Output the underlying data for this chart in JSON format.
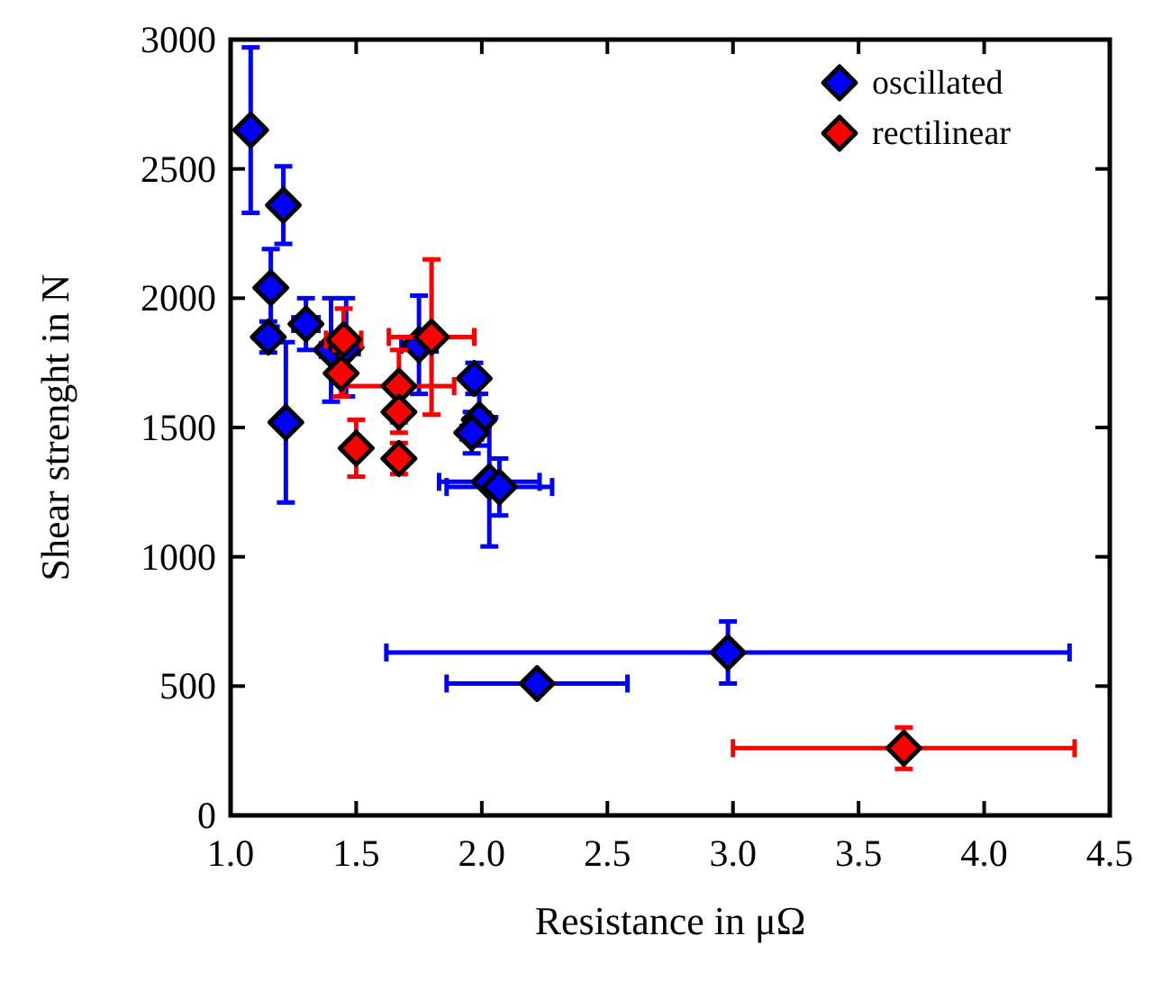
{
  "chart_data": {
    "type": "scatter",
    "xlabel": "Resistance in μΩ",
    "ylabel": "Shear strenght in N",
    "xlim": [
      1.0,
      4.5
    ],
    "xticks": [
      {
        "value": 1,
        "label": "1.0"
      },
      {
        "value": 1.5,
        "label": "1.5"
      },
      {
        "value": 2,
        "label": "2.0"
      },
      {
        "value": 2.5,
        "label": "2.5"
      },
      {
        "value": 3,
        "label": "3.0"
      },
      {
        "value": 3.5,
        "label": "3.5"
      },
      {
        "value": 4,
        "label": "4.0"
      },
      {
        "value": 4.5,
        "label": "4.5"
      }
    ],
    "ylim": [
      0,
      3000
    ],
    "yticks": [
      0,
      500,
      1000,
      1500,
      2000,
      2500,
      3000
    ],
    "grid": false,
    "legend": "top right",
    "marker": "diamond",
    "series": [
      {
        "name": "oscillated",
        "color": "#0000ff",
        "x": [
          1.08,
          1.21,
          1.16,
          1.15,
          1.3,
          1.22,
          1.4,
          1.46,
          1.75,
          1.97,
          1.99,
          1.96,
          2.03,
          2.07,
          2.22,
          2.98
        ],
        "values": [
          2650,
          2360,
          2040,
          1850,
          1900,
          1520,
          1800,
          1810,
          1820,
          1690,
          1530,
          1480,
          1290,
          1270,
          510,
          630
        ],
        "errors": [
          320,
          150,
          150,
          60,
          100,
          310,
          200,
          190,
          190,
          60,
          100,
          80,
          250,
          110,
          null,
          120
        ],
        "xerrors": [
          0.03,
          0.03,
          0.03,
          0.03,
          0.05,
          0.02,
          0.04,
          0.05,
          0.07,
          0.03,
          0.04,
          0.04,
          0.2,
          0.21,
          0.36,
          1.36
        ]
      },
      {
        "name": "rectilinear",
        "color": "#ff0000",
        "x": [
          1.45,
          1.44,
          1.67,
          1.8,
          1.67,
          1.5,
          1.67,
          3.68
        ],
        "values": [
          1840,
          1710,
          1660,
          1850,
          1560,
          1420,
          1380,
          260
        ],
        "errors": [
          120,
          90,
          140,
          300,
          80,
          110,
          60,
          80
        ],
        "xerrors": [
          0.07,
          0.03,
          0.22,
          0.17,
          0.02,
          0.02,
          0.02,
          0.68
        ]
      }
    ]
  }
}
